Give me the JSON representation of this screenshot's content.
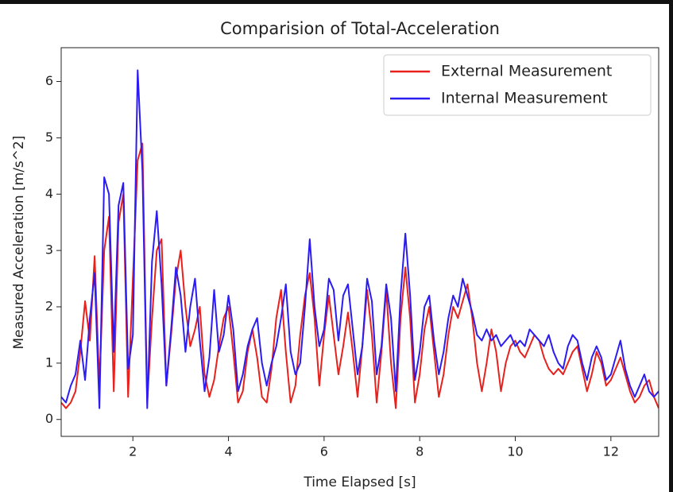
{
  "chart_data": {
    "type": "line",
    "title": "Comparision of Total-Acceleration",
    "xlabel": "Time Elapsed [s]",
    "ylabel": "Measured Acceleration [m/s^2]",
    "xlim": [
      0.5,
      13.0
    ],
    "ylim": [
      -0.3,
      6.6
    ],
    "xticks": [
      2,
      4,
      6,
      8,
      10,
      12
    ],
    "yticks": [
      0,
      1,
      2,
      3,
      4,
      5,
      6
    ],
    "legend": "upper right",
    "x": [
      0.5,
      0.6,
      0.7,
      0.8,
      0.9,
      1.0,
      1.1,
      1.2,
      1.3,
      1.4,
      1.5,
      1.6,
      1.7,
      1.8,
      1.9,
      2.0,
      2.1,
      2.2,
      2.3,
      2.4,
      2.5,
      2.6,
      2.7,
      2.8,
      2.9,
      3.0,
      3.1,
      3.2,
      3.3,
      3.4,
      3.5,
      3.6,
      3.7,
      3.8,
      3.9,
      4.0,
      4.1,
      4.2,
      4.3,
      4.4,
      4.5,
      4.6,
      4.7,
      4.8,
      4.9,
      5.0,
      5.1,
      5.2,
      5.3,
      5.4,
      5.5,
      5.6,
      5.7,
      5.8,
      5.9,
      6.0,
      6.1,
      6.2,
      6.3,
      6.4,
      6.5,
      6.6,
      6.7,
      6.8,
      6.9,
      7.0,
      7.1,
      7.2,
      7.3,
      7.4,
      7.5,
      7.6,
      7.7,
      7.8,
      7.9,
      8.0,
      8.1,
      8.2,
      8.3,
      8.4,
      8.5,
      8.6,
      8.7,
      8.8,
      8.9,
      9.0,
      9.1,
      9.2,
      9.3,
      9.4,
      9.5,
      9.6,
      9.7,
      9.8,
      9.9,
      10.0,
      10.1,
      10.2,
      10.3,
      10.4,
      10.5,
      10.6,
      10.7,
      10.8,
      10.9,
      11.0,
      11.1,
      11.2,
      11.3,
      11.4,
      11.5,
      11.6,
      11.7,
      11.8,
      11.9,
      12.0,
      12.1,
      12.2,
      12.3,
      12.4,
      12.5,
      12.6,
      12.7,
      12.8,
      12.9,
      13.0
    ],
    "series": [
      {
        "name": "External Measurement",
        "color": "#e8211c",
        "values": [
          0.3,
          0.2,
          0.3,
          0.5,
          1.2,
          2.1,
          1.4,
          2.9,
          0.6,
          3.0,
          3.6,
          0.5,
          3.5,
          4.0,
          0.4,
          2.5,
          4.6,
          4.9,
          0.3,
          1.8,
          3.0,
          3.2,
          0.6,
          1.5,
          2.5,
          3.0,
          2.0,
          1.3,
          1.6,
          2.0,
          0.8,
          0.4,
          0.7,
          1.3,
          1.8,
          2.0,
          1.2,
          0.3,
          0.5,
          1.2,
          1.6,
          1.1,
          0.4,
          0.3,
          0.9,
          1.8,
          2.3,
          1.2,
          0.3,
          0.6,
          1.5,
          2.2,
          2.6,
          1.8,
          0.6,
          1.5,
          2.2,
          1.5,
          0.8,
          1.3,
          1.9,
          1.2,
          0.4,
          1.3,
          2.3,
          1.5,
          0.3,
          1.2,
          2.3,
          1.0,
          0.2,
          1.8,
          2.7,
          1.8,
          0.3,
          0.8,
          1.6,
          2.0,
          1.2,
          0.4,
          0.8,
          1.5,
          2.0,
          1.8,
          2.1,
          2.4,
          1.8,
          1.0,
          0.5,
          1.0,
          1.6,
          1.2,
          0.5,
          1.0,
          1.3,
          1.4,
          1.2,
          1.1,
          1.3,
          1.5,
          1.4,
          1.1,
          0.9,
          0.8,
          0.9,
          0.8,
          1.0,
          1.2,
          1.3,
          0.9,
          0.5,
          0.8,
          1.2,
          1.0,
          0.6,
          0.7,
          0.9,
          1.1,
          0.8,
          0.5,
          0.3,
          0.4,
          0.6,
          0.7,
          0.4,
          0.2
        ]
      },
      {
        "name": "Internal Measurement",
        "color": "#2b1cf2",
        "values": [
          0.4,
          0.3,
          0.6,
          0.8,
          1.4,
          0.7,
          1.8,
          2.6,
          0.2,
          4.3,
          4.0,
          1.2,
          3.8,
          4.2,
          0.9,
          1.5,
          6.2,
          4.4,
          0.2,
          2.8,
          3.7,
          2.4,
          0.6,
          1.6,
          2.7,
          2.2,
          1.2,
          2.0,
          2.5,
          1.4,
          0.5,
          1.1,
          2.3,
          1.2,
          1.5,
          2.2,
          1.6,
          0.5,
          0.8,
          1.3,
          1.6,
          1.8,
          1.0,
          0.6,
          1.0,
          1.3,
          1.8,
          2.4,
          1.2,
          0.8,
          1.0,
          2.0,
          3.2,
          2.0,
          1.3,
          1.6,
          2.5,
          2.3,
          1.4,
          2.2,
          2.4,
          1.6,
          0.8,
          1.3,
          2.5,
          2.1,
          0.8,
          1.3,
          2.4,
          1.8,
          0.5,
          2.2,
          3.3,
          2.2,
          0.7,
          1.2,
          2.0,
          2.2,
          1.4,
          0.8,
          1.2,
          1.8,
          2.2,
          2.0,
          2.5,
          2.2,
          1.9,
          1.5,
          1.4,
          1.6,
          1.4,
          1.5,
          1.3,
          1.4,
          1.5,
          1.3,
          1.4,
          1.3,
          1.6,
          1.5,
          1.4,
          1.3,
          1.5,
          1.2,
          1.0,
          0.9,
          1.3,
          1.5,
          1.4,
          1.0,
          0.7,
          1.1,
          1.3,
          1.1,
          0.7,
          0.8,
          1.1,
          1.4,
          0.9,
          0.6,
          0.4,
          0.6,
          0.8,
          0.5,
          0.4,
          0.5
        ]
      }
    ]
  }
}
